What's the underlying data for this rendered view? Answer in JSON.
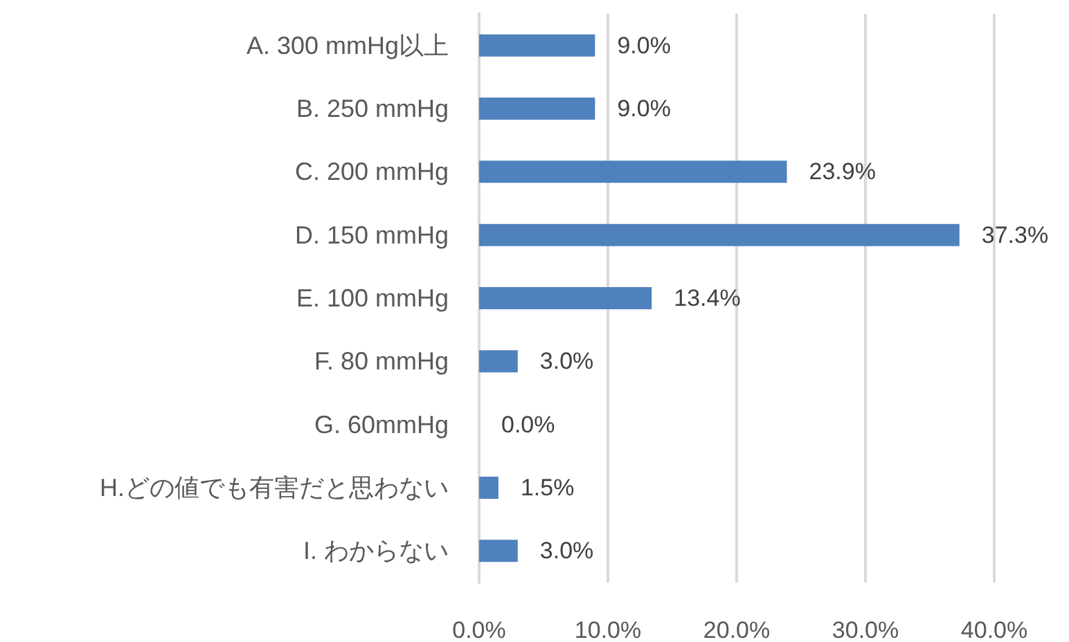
{
  "chart_data": {
    "type": "bar",
    "orientation": "horizontal",
    "categories": [
      "A. 300 mmHg以上",
      "B. 250 mmHg",
      "C. 200 mmHg",
      "D. 150 mmHg",
      "E. 100 mmHg",
      "F. 80 mmHg",
      "G. 60mmHg",
      "H.どの値でも有害だと思わない",
      "I. わからない"
    ],
    "values": [
      9.0,
      9.0,
      23.9,
      37.3,
      13.4,
      3.0,
      0.0,
      1.5,
      3.0
    ],
    "value_labels": [
      "9.0%",
      "9.0%",
      "23.9%",
      "37.3%",
      "13.4%",
      "3.0%",
      "0.0%",
      "1.5%",
      "3.0%"
    ],
    "color": "#4f81bd",
    "xlim": [
      0,
      40
    ],
    "xticks": [
      {
        "value": 0,
        "label": "0.0%"
      },
      {
        "value": 10,
        "label": "10.0%"
      },
      {
        "value": 20,
        "label": "20.0%"
      },
      {
        "value": 30,
        "label": "30.0%"
      },
      {
        "value": 40,
        "label": "40.0%"
      }
    ],
    "grid": "x"
  }
}
